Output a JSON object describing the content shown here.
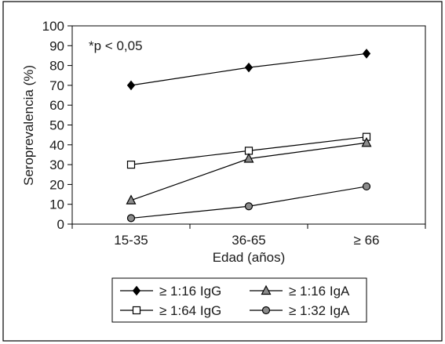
{
  "chart_data": {
    "type": "line",
    "title": "",
    "xlabel": "Edad (años)",
    "ylabel": "Seroprevalencia (%)",
    "categories": [
      "15-35",
      "36-65",
      "≥ 66"
    ],
    "ylim": [
      0,
      100
    ],
    "yticks": [
      0,
      10,
      20,
      30,
      40,
      50,
      60,
      70,
      80,
      90,
      100
    ],
    "grid": false,
    "legend_position": "bottom",
    "annotation": "*p < 0,05",
    "series": [
      {
        "name": "≥ 1:16 IgG",
        "marker": "diamond",
        "fill": "#000000",
        "values": [
          70,
          79,
          86
        ]
      },
      {
        "name": "≥ 1:64 IgG",
        "marker": "square",
        "fill": "#ffffff",
        "values": [
          30,
          37,
          44
        ]
      },
      {
        "name": "≥ 1:16 IgA",
        "marker": "triangle",
        "fill": "#8c8c8c",
        "values": [
          12,
          33,
          41
        ]
      },
      {
        "name": "≥ 1:32 IgA",
        "marker": "circle",
        "fill": "#8c8c8c",
        "values": [
          3,
          9,
          19
        ]
      }
    ]
  }
}
